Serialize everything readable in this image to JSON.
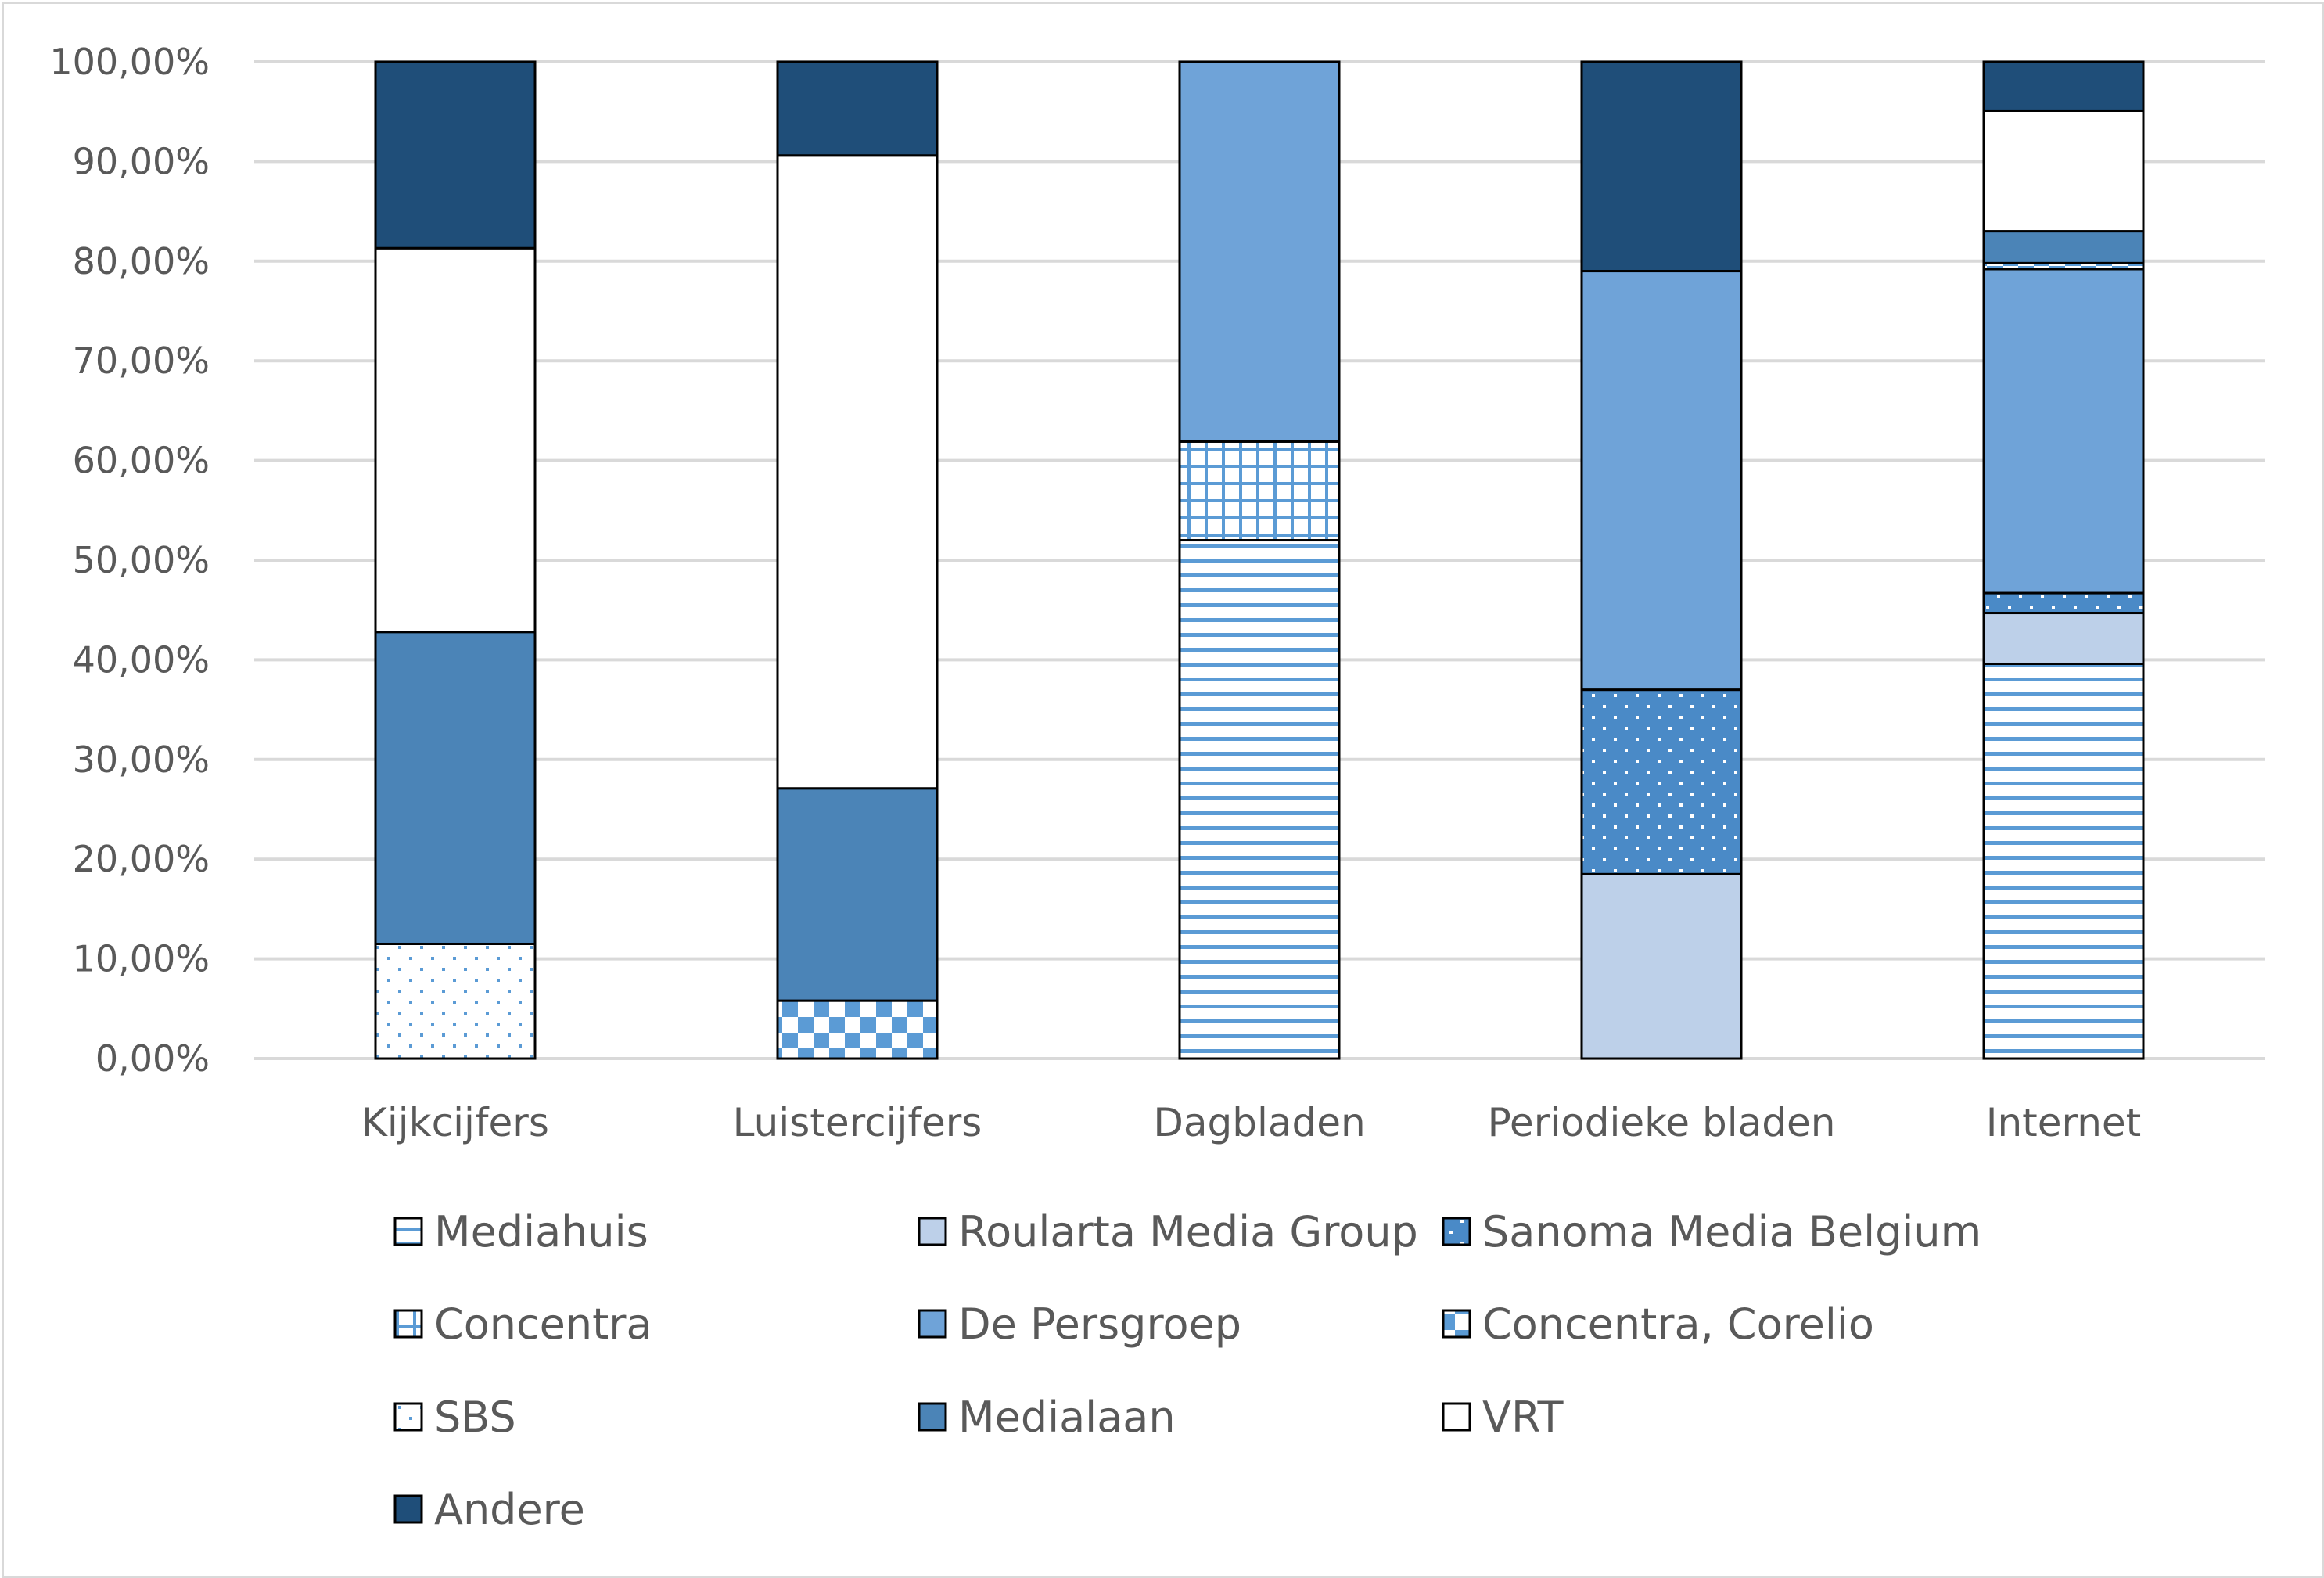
{
  "chart_data": {
    "type": "bar",
    "stacked": true,
    "categories": [
      "Kijkcijfers",
      "Luistercijfers",
      "Dagbladen",
      "Periodieke bladen",
      "Internet"
    ],
    "y_ticks": [
      "0,00%",
      "10,00%",
      "20,00%",
      "30,00%",
      "40,00%",
      "50,00%",
      "60,00%",
      "70,00%",
      "80,00%",
      "90,00%",
      "100,00%"
    ],
    "ylim": [
      0,
      100
    ],
    "grid": true,
    "legend_position": "bottom",
    "series": [
      {
        "name": "Mediahuis",
        "pattern": "hstripes",
        "color": "#5b9bd5",
        "values": [
          0,
          0,
          52.0,
          0,
          39.6
        ]
      },
      {
        "name": "Roularta Media Group",
        "pattern": "solid",
        "color": "#bdd0e9",
        "values": [
          0,
          0,
          0,
          18.5,
          5.1
        ]
      },
      {
        "name": "Sanoma Media Belgium",
        "pattern": "dots-white",
        "color": "#4a8ac7",
        "values": [
          0,
          0,
          0,
          18.5,
          2.0
        ]
      },
      {
        "name": "Concentra",
        "pattern": "grid",
        "color": "#5b9bd5",
        "values": [
          0,
          0,
          9.9,
          0,
          0
        ]
      },
      {
        "name": "De Persgroep",
        "pattern": "solid",
        "color": "#6fa3d8",
        "values": [
          0,
          0,
          38.1,
          42.0,
          32.5
        ]
      },
      {
        "name": "Concentra, Corelio",
        "pattern": "checker",
        "color": "#5b9bd5",
        "values": [
          0,
          5.8,
          0,
          0,
          0.6
        ]
      },
      {
        "name": "SBS",
        "pattern": "dots-blue",
        "color": "#5b9bd5",
        "values": [
          11.5,
          0,
          0,
          0,
          0
        ]
      },
      {
        "name": "Medialaan",
        "pattern": "solid",
        "color": "#4b84b7",
        "values": [
          31.3,
          21.3,
          0,
          0,
          3.2
        ]
      },
      {
        "name": "VRT",
        "pattern": "solid",
        "color": "#ffffff",
        "values": [
          38.5,
          63.5,
          0,
          0,
          12.1
        ]
      },
      {
        "name": "Andere",
        "pattern": "solid",
        "color": "#1f4e79",
        "values": [
          18.7,
          9.4,
          0,
          21.0,
          4.9
        ]
      }
    ]
  }
}
